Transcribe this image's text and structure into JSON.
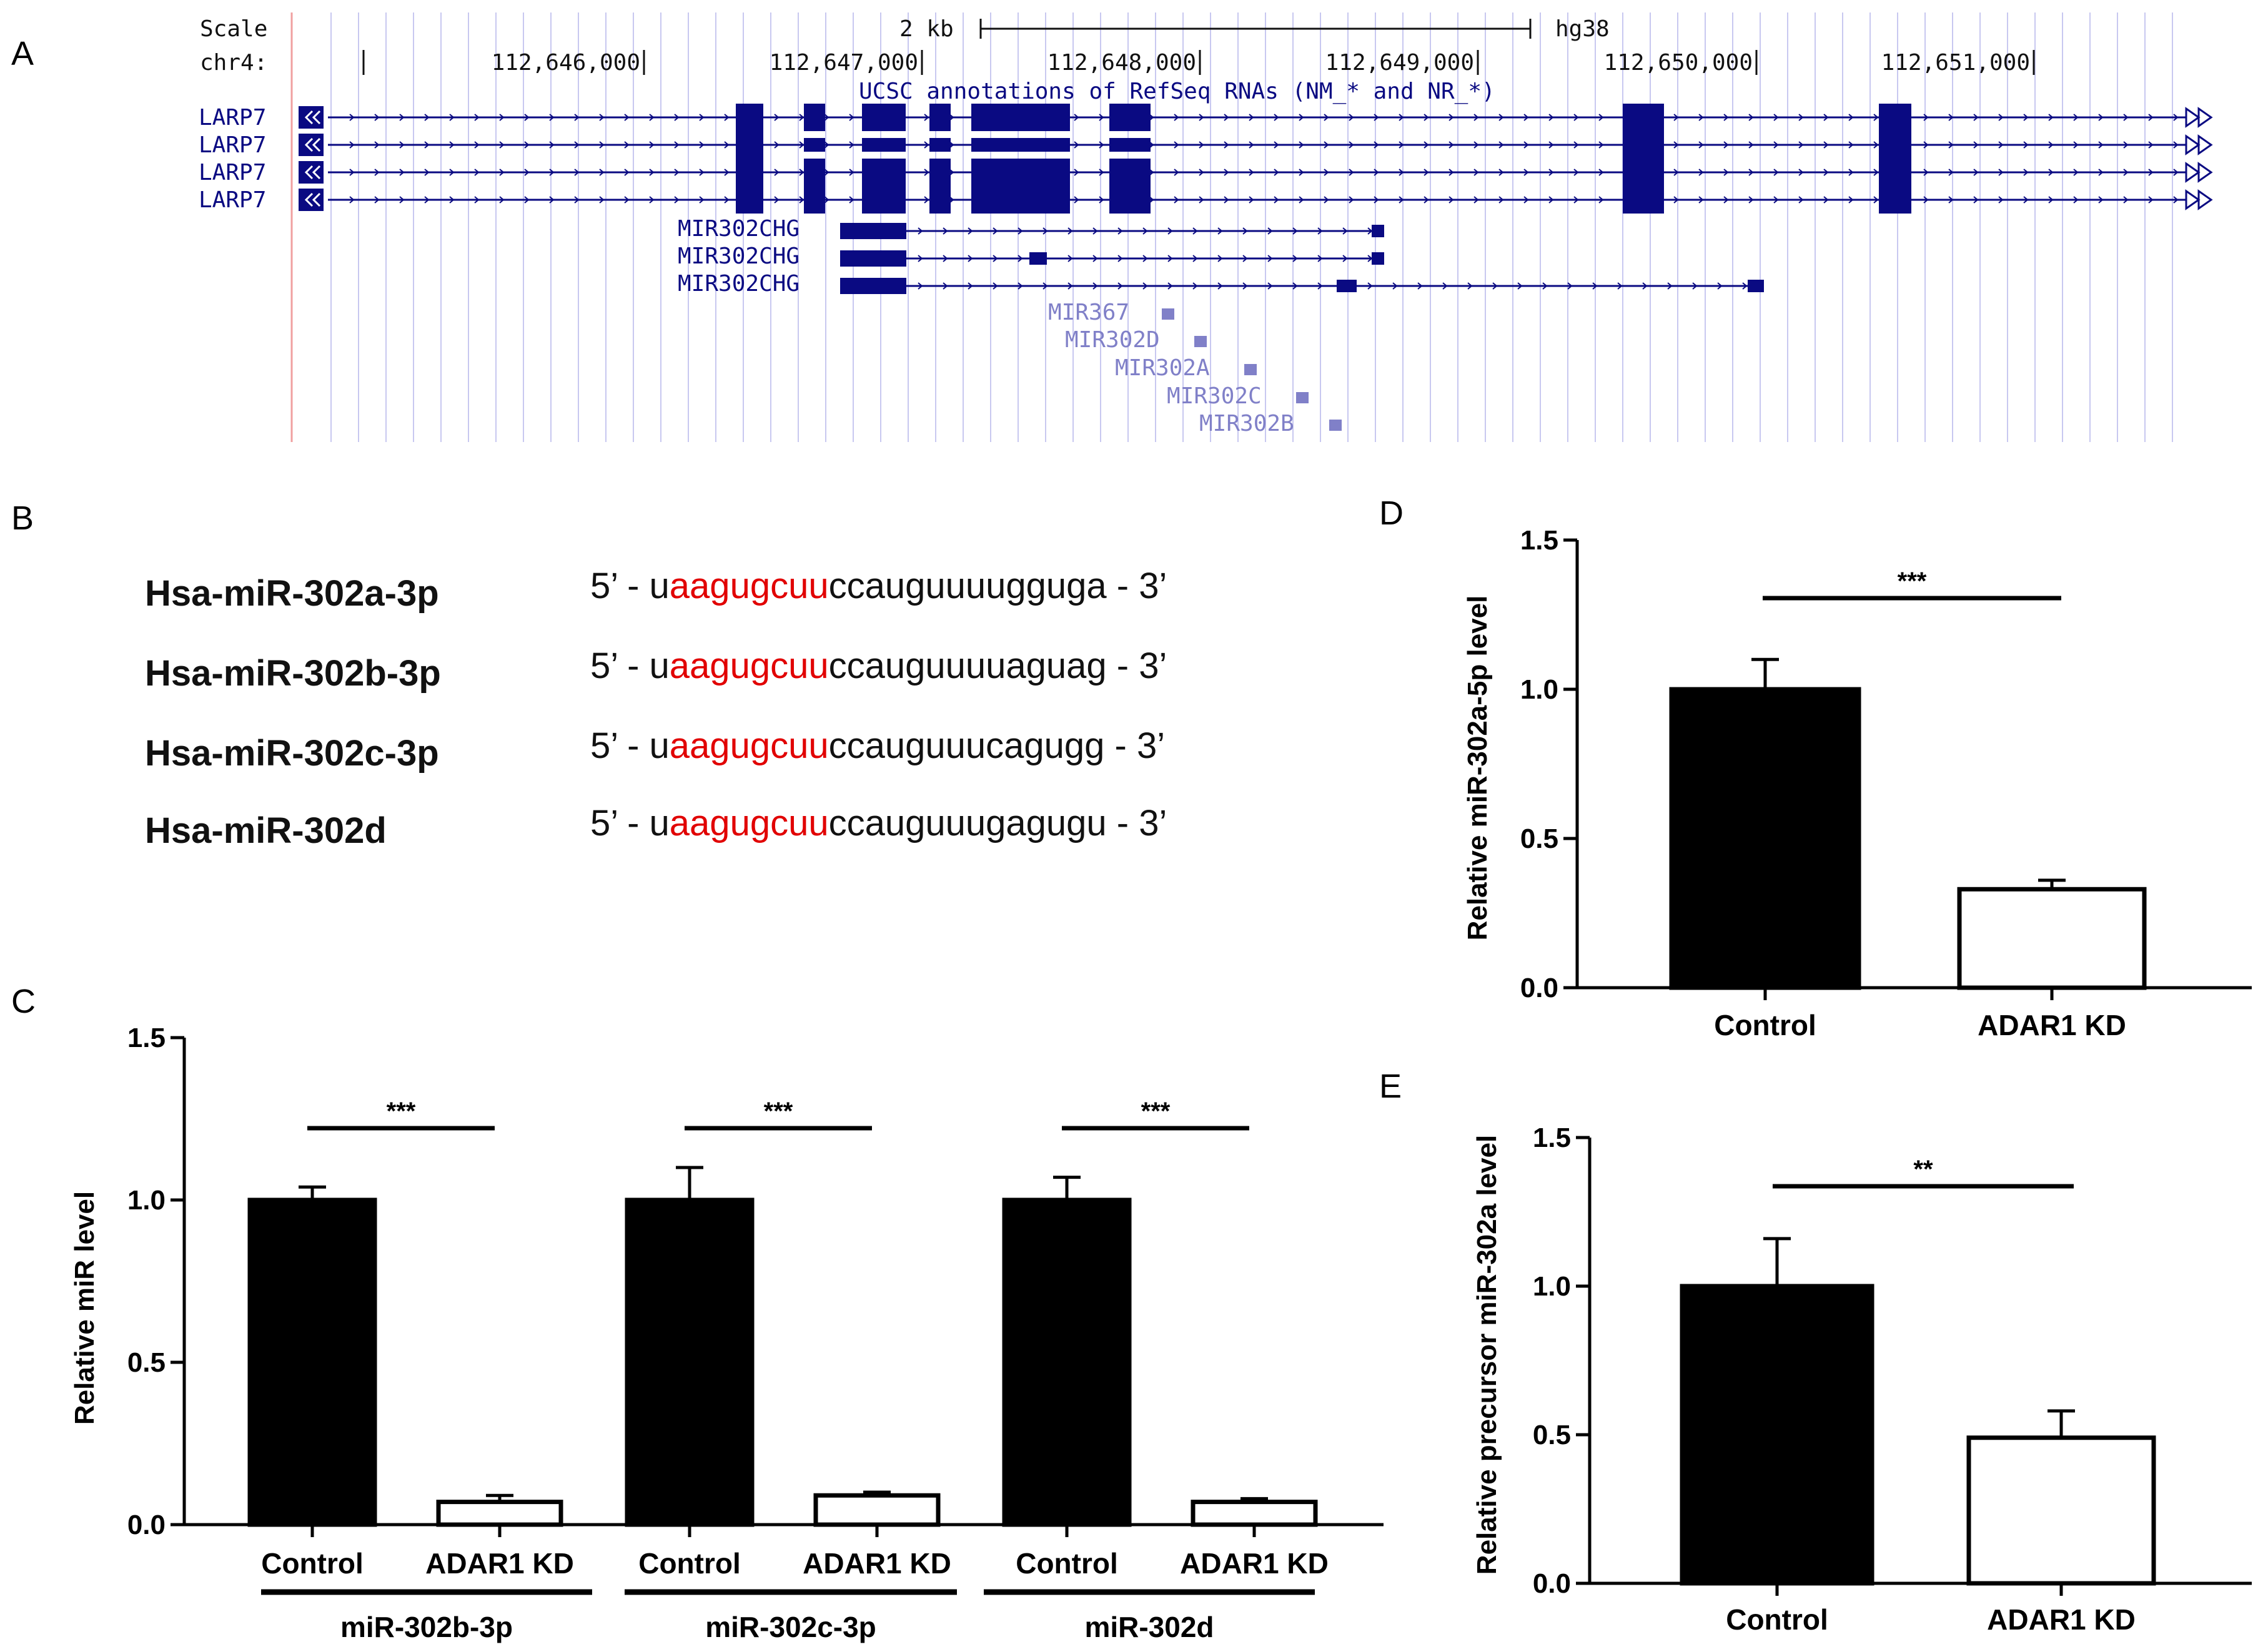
{
  "panels": {
    "A": "A",
    "B": "B",
    "C": "C",
    "D": "D",
    "E": "E"
  },
  "colors": {
    "gene_dark": "#0a0a82",
    "gene_light": "#8080c8",
    "grid": "#c8c8f0",
    "highlight": "#e10000",
    "control_bar": "#000000",
    "kd_bar": "#ffffff"
  },
  "browser": {
    "scale_label": "Scale",
    "scale_value": "2 kb",
    "assembly": "hg38",
    "chrom_label": "chr4:",
    "positions": [
      "112,646,000",
      "112,647,000",
      "112,648,000",
      "112,649,000",
      "112,650,000",
      "112,651,000"
    ],
    "track_title": "UCSC annotations of RefSeq RNAs (NM_* and NR_*)",
    "larp7_tracks": [
      "LARP7",
      "LARP7",
      "LARP7",
      "LARP7"
    ],
    "chg_tracks": [
      "MIR302CHG",
      "MIR302CHG",
      "MIR302CHG"
    ],
    "mirnas": [
      "MIR367",
      "MIR302D",
      "MIR302A",
      "MIR302C",
      "MIR302B"
    ]
  },
  "sequences": [
    {
      "name": "Hsa-miR-302a-3p",
      "prefix": "5’ - u",
      "seed": "aagugcuu",
      "rest": "ccauguuuugguga - 3’"
    },
    {
      "name": "Hsa-miR-302b-3p",
      "prefix": "5’ - u",
      "seed": "aagugcuu",
      "rest": "ccauguuuuaguag - 3’"
    },
    {
      "name": "Hsa-miR-302c-3p",
      "prefix": "5’ - u",
      "seed": "aagugcuu",
      "rest": "ccauguuucagugg - 3’"
    },
    {
      "name": "Hsa-miR-302d",
      "prefix": "5’ - u",
      "seed": "aagugcuu",
      "rest": "ccauguuugagugu - 3’"
    }
  ],
  "chart_data": [
    {
      "panel": "C",
      "type": "bar",
      "ylabel": "Relative miR level",
      "ylim": [
        0,
        1.5
      ],
      "yticks": [
        "0.0",
        "0.5",
        "1.0",
        "1.5"
      ],
      "groups": [
        {
          "name": "miR-302b-3p",
          "categories": [
            "Control",
            "ADAR1 KD"
          ],
          "values": [
            1.0,
            0.07
          ],
          "errors": [
            0.04,
            0.02
          ],
          "significance": "***"
        },
        {
          "name": "miR-302c-3p",
          "categories": [
            "Control",
            "ADAR1 KD"
          ],
          "values": [
            1.0,
            0.09
          ],
          "errors": [
            0.1,
            0.01
          ],
          "significance": "***"
        },
        {
          "name": "miR-302d",
          "categories": [
            "Control",
            "ADAR1 KD"
          ],
          "values": [
            1.0,
            0.07
          ],
          "errors": [
            0.07,
            0.01
          ],
          "significance": "***"
        }
      ]
    },
    {
      "panel": "D",
      "type": "bar",
      "ylabel": "Relative miR-302a-5p level",
      "ylim": [
        0,
        1.5
      ],
      "yticks": [
        "0.0",
        "0.5",
        "1.0",
        "1.5"
      ],
      "categories": [
        "Control",
        "ADAR1 KD"
      ],
      "values": [
        1.0,
        0.33
      ],
      "errors": [
        0.1,
        0.03
      ],
      "significance": "***"
    },
    {
      "panel": "E",
      "type": "bar",
      "ylabel": "Relative precursor miR-302a level",
      "ylim": [
        0,
        1.5
      ],
      "yticks": [
        "0.0",
        "0.5",
        "1.0",
        "1.5"
      ],
      "categories": [
        "Control",
        "ADAR1 KD"
      ],
      "values": [
        1.0,
        0.49
      ],
      "errors": [
        0.16,
        0.09
      ],
      "significance": "**"
    }
  ]
}
